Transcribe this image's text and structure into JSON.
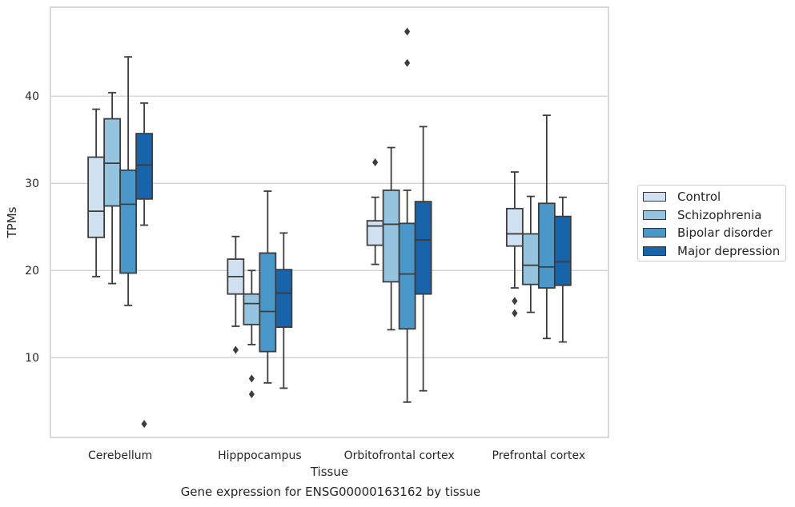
{
  "chart_data": {
    "type": "box",
    "title": "",
    "caption": "Gene expression for ENSG00000163162 by tissue",
    "xlabel": "Tissue",
    "ylabel": "TPMs",
    "ylim": [
      0,
      50
    ],
    "yticks": [
      10,
      20,
      30,
      40
    ],
    "grid": true,
    "legend_position": "right",
    "categories": [
      "Cerebellum",
      "Hipppocampus",
      "Orbitofrontal cortex",
      "Prefrontal cortex"
    ],
    "series": [
      {
        "name": "Control",
        "color": "#d0e1f2",
        "boxes": [
          {
            "whisker_low": 19.3,
            "q1": 23.8,
            "median": 26.8,
            "q3": 33.0,
            "whisker_high": 38.5,
            "outliers": []
          },
          {
            "whisker_low": 13.6,
            "q1": 17.3,
            "median": 19.3,
            "q3": 21.3,
            "whisker_high": 23.9,
            "outliers": [
              10.9
            ]
          },
          {
            "whisker_low": 20.7,
            "q1": 22.9,
            "median": 25.1,
            "q3": 25.7,
            "whisker_high": 28.4,
            "outliers": [
              32.4
            ]
          },
          {
            "whisker_low": 18.0,
            "q1": 22.8,
            "median": 24.2,
            "q3": 27.1,
            "whisker_high": 31.3,
            "outliers": [
              16.5,
              15.1
            ]
          }
        ]
      },
      {
        "name": "Schizophrenia",
        "color": "#94c4df",
        "boxes": [
          {
            "whisker_low": 18.5,
            "q1": 27.4,
            "median": 32.3,
            "q3": 37.4,
            "whisker_high": 40.4,
            "outliers": []
          },
          {
            "whisker_low": 11.5,
            "q1": 13.8,
            "median": 16.2,
            "q3": 17.3,
            "whisker_high": 20.0,
            "outliers": [
              7.6,
              5.8
            ]
          },
          {
            "whisker_low": 13.2,
            "q1": 18.7,
            "median": 25.3,
            "q3": 29.2,
            "whisker_high": 34.1,
            "outliers": []
          },
          {
            "whisker_low": 15.2,
            "q1": 18.4,
            "median": 20.6,
            "q3": 24.2,
            "whisker_high": 28.5,
            "outliers": []
          }
        ]
      },
      {
        "name": "Bipolar disorder",
        "color": "#4a98c9",
        "boxes": [
          {
            "whisker_low": 16.0,
            "q1": 19.7,
            "median": 27.6,
            "q3": 31.5,
            "whisker_high": 44.5,
            "outliers": []
          },
          {
            "whisker_low": 7.1,
            "q1": 10.7,
            "median": 15.3,
            "q3": 22.0,
            "whisker_high": 29.1,
            "outliers": []
          },
          {
            "whisker_low": 4.9,
            "q1": 13.3,
            "median": 19.6,
            "q3": 25.4,
            "whisker_high": 29.2,
            "outliers": [
              47.4,
              43.8
            ]
          },
          {
            "whisker_low": 12.2,
            "q1": 18.0,
            "median": 20.4,
            "q3": 27.7,
            "whisker_high": 37.8,
            "outliers": []
          }
        ]
      },
      {
        "name": "Major depression",
        "color": "#1764ab",
        "boxes": [
          {
            "whisker_low": 25.2,
            "q1": 28.2,
            "median": 32.1,
            "q3": 35.7,
            "whisker_high": 39.2,
            "outliers": [
              2.4
            ]
          },
          {
            "whisker_low": 6.5,
            "q1": 13.5,
            "median": 17.4,
            "q3": 20.1,
            "whisker_high": 24.3,
            "outliers": []
          },
          {
            "whisker_low": 6.2,
            "q1": 17.3,
            "median": 23.5,
            "q3": 27.9,
            "whisker_high": 36.5,
            "outliers": []
          },
          {
            "whisker_low": 11.8,
            "q1": 18.3,
            "median": 21.0,
            "q3": 26.2,
            "whisker_high": 28.4,
            "outliers": []
          }
        ]
      }
    ]
  }
}
